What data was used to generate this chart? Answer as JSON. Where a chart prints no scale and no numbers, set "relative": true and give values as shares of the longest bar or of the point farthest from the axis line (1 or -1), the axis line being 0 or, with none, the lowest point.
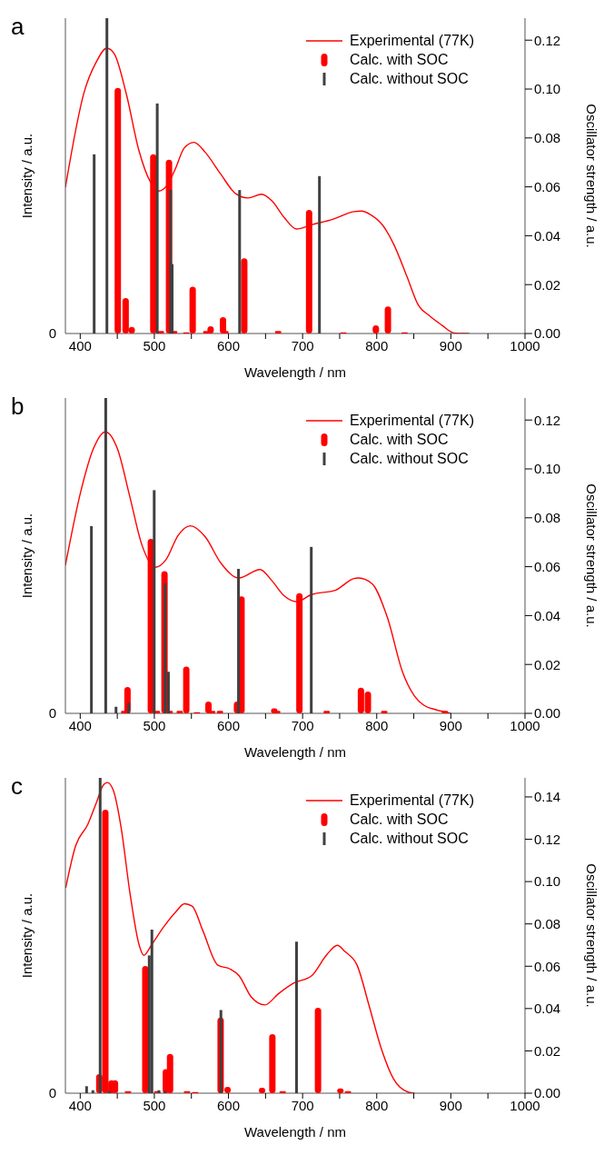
{
  "chart_data": [
    {
      "type": "line",
      "title": "a",
      "xlabel": "Wavelength / nm",
      "ylabel": "Intensity / a.u.",
      "y2label": "Oscillator strength / a.u.",
      "relative": true,
      "legend": "top right",
      "annotations": [
        "0"
      ],
      "xlim": [
        380,
        1000
      ],
      "xticks": [
        400,
        {
          "value": 450,
          "label": null
        },
        500,
        {
          "value": 550,
          "label": null
        },
        600,
        {
          "value": 650,
          "label": null
        },
        700,
        {
          "value": 750,
          "label": null
        },
        800,
        {
          "value": 850,
          "label": null
        },
        900,
        {
          "value": 950,
          "label": null
        },
        1000
      ],
      "y2lim": [
        0,
        0.129
      ],
      "y2ticks": [
        {
          "value": 0,
          "label": "0.00"
        },
        {
          "value": 0.02,
          "label": "0.02"
        },
        {
          "value": 0.04,
          "label": "0.04"
        },
        {
          "value": 0.06,
          "label": "0.06"
        },
        {
          "value": 0.08,
          "label": "0.08"
        },
        {
          "value": 0.1,
          "label": "0.10"
        },
        {
          "value": 0.12,
          "label": "0.12"
        }
      ],
      "series": [
        {
          "name": "Experimental (77K)",
          "color": "#ff0000",
          "x": [
            380,
            405.3,
            421.7,
            436,
            446.2,
            462.6,
            478.9,
            495.3,
            505.5,
            517.8,
            528,
            540.3,
            553.4,
            568.9,
            589.4,
            609.8,
            626.2,
            644.6,
            658.9,
            675.3,
            691.6,
            712.1,
            740.7,
            769.3,
            779.6,
            791.9,
            808.2,
            822.5,
            840.9,
            855.2,
            871.6,
            888,
            904.3,
            925
          ],
          "values": [
            0.512,
            0.846,
            0.952,
            1,
            0.979,
            0.835,
            0.644,
            0.528,
            0.499,
            0.522,
            0.575,
            0.65,
            0.67,
            0.634,
            0.559,
            0.49,
            0.475,
            0.488,
            0.464,
            0.406,
            0.366,
            0.381,
            0.4,
            0.427,
            0.429,
            0.416,
            0.379,
            0.315,
            0.199,
            0.104,
            0.061,
            0.029,
            0.002,
            0
          ]
        },
        {
          "name": "Calc. with SOC",
          "type": "bar",
          "axis": "y2",
          "color": "#ff0000",
          "x": [
            450.7,
            461.3,
            469.5,
            498.6,
            508.8,
            519.8,
            526.8,
            543.1,
            551.7,
            570,
            575.9,
            592.6,
            595.9,
            621.3,
            667,
            708.8,
            755,
            798.8,
            815.1,
            837.6
          ],
          "values": [
            0.1005,
            0.0145,
            0.0027,
            0.0733,
            0.001,
            0.0711,
            0.001,
            0.0005,
            0.0191,
            0.001,
            0.003,
            0.0067,
            0.001,
            0.0308,
            0.001,
            0.0506,
            0.0005,
            0.0033,
            0.0111,
            0.0005
          ]
        },
        {
          "name": "Calc. without SOC",
          "type": "bar",
          "axis": "y2",
          "color": "#404040",
          "x": [
            418.8,
            436,
            503.9,
            521.9,
            524,
            615,
            722.7
          ],
          "values": [
            0.0733,
            0.129,
            0.0941,
            0.0588,
            0.0284,
            0.0587,
            0.0644
          ]
        }
      ]
    },
    {
      "type": "line",
      "title": "b",
      "xlabel": "Wavelength / nm",
      "ylabel": "Intensity / a.u.",
      "y2label": "Oscillator strength / a.u.",
      "relative": true,
      "legend": "top right",
      "annotations": [
        "0"
      ],
      "xlim": [
        380,
        1000
      ],
      "xticks": [
        400,
        {
          "value": 450,
          "label": null
        },
        500,
        {
          "value": 550,
          "label": null
        },
        600,
        {
          "value": 650,
          "label": null
        },
        700,
        {
          "value": 750,
          "label": null
        },
        800,
        {
          "value": 850,
          "label": null
        },
        900,
        {
          "value": 950,
          "label": null
        },
        1000
      ],
      "y2lim": [
        0,
        0.129
      ],
      "y2ticks": [
        {
          "value": 0,
          "label": "0.00"
        },
        {
          "value": 0.02,
          "label": "0.02"
        },
        {
          "value": 0.04,
          "label": "0.04"
        },
        {
          "value": 0.06,
          "label": "0.06"
        },
        {
          "value": 0.08,
          "label": "0.08"
        },
        {
          "value": 0.1,
          "label": "0.10"
        },
        {
          "value": 0.12,
          "label": "0.12"
        }
      ],
      "series": [
        {
          "name": "Experimental (77K)",
          "color": "#ff0000",
          "x": [
            380,
            401.2,
            417.6,
            434,
            450.3,
            466.7,
            483,
            501.4,
            515.7,
            532.1,
            548.5,
            568.9,
            589.4,
            613.9,
            642.5,
            658.9,
            675.3,
            691.6,
            712.1,
            744.8,
            769.3,
            775.4,
            793.9,
            814.3,
            834.8,
            851.1,
            863.4,
            879.8,
            900.2
          ],
          "values": [
            0.526,
            0.793,
            0.939,
            1,
            0.939,
            0.772,
            0.6,
            0.519,
            0.546,
            0.632,
            0.666,
            0.626,
            0.535,
            0.481,
            0.511,
            0.47,
            0.417,
            0.397,
            0.422,
            0.438,
            0.479,
            0.481,
            0.46,
            0.341,
            0.147,
            0.061,
            0.029,
            0.013,
            0
          ]
        },
        {
          "name": "Calc. with SOC",
          "type": "bar",
          "axis": "y2",
          "color": "#ff0000",
          "x": [
            459.3,
            463.8,
            495.3,
            503.5,
            513.7,
            520.7,
            534.2,
            543.1,
            557.5,
            573,
            578,
            588.5,
            611.5,
            617.6,
            661.8,
            665.8,
            695.7,
            732.5,
            778.7,
            788.1,
            810.2,
            892
          ],
          "values": [
            0.001,
            0.0108,
            0.0714,
            0.001,
            0.0582,
            0.001,
            0.001,
            0.0191,
            0.0005,
            0.0048,
            0.001,
            0.001,
            0.0048,
            0.0479,
            0.002,
            0.001,
            0.0492,
            0.001,
            0.0105,
            0.0089,
            0.001,
            0.001
          ]
        },
        {
          "name": "Calc. without SOC",
          "type": "bar",
          "axis": "y2",
          "color": "#404040",
          "x": [
            415.1,
            434.4,
            448.3,
            465.4,
            499.8,
            514.5,
            519,
            613.5,
            711.7
          ],
          "values": [
            0.0766,
            0.129,
            0.0027,
            0.0043,
            0.0913,
            0.0532,
            0.017,
            0.0591,
            0.0681
          ]
        }
      ]
    },
    {
      "type": "line",
      "title": "c",
      "xlabel": "Wavelength / nm",
      "ylabel": "Intensity / a.u.",
      "y2label": "Oscillator strength / a.u.",
      "relative": true,
      "legend": "top right",
      "annotations": [
        "0"
      ],
      "xlim": [
        380,
        1000
      ],
      "xticks": [
        400,
        {
          "value": 450,
          "label": null
        },
        500,
        {
          "value": 550,
          "label": null
        },
        600,
        {
          "value": 650,
          "label": null
        },
        700,
        {
          "value": 750,
          "label": null
        },
        800,
        {
          "value": 850,
          "label": null
        },
        900,
        {
          "value": 950,
          "label": null
        },
        1000
      ],
      "y2lim": [
        0,
        0.149
      ],
      "y2ticks": [
        {
          "value": 0,
          "label": "0.00"
        },
        {
          "value": 0.02,
          "label": "0.02"
        },
        {
          "value": 0.04,
          "label": "0.04"
        },
        {
          "value": 0.06,
          "label": "0.06"
        },
        {
          "value": 0.08,
          "label": "0.08"
        },
        {
          "value": 0.1,
          "label": "0.10"
        },
        {
          "value": 0.12,
          "label": "0.12"
        },
        {
          "value": 0.14,
          "label": "0.14"
        }
      ],
      "series": [
        {
          "name": "Experimental (77K)",
          "color": "#ff0000",
          "x": [
            380.4,
            393.9,
            410.2,
            422.4,
            430.6,
            436.7,
            444.9,
            455.1,
            467.3,
            479.6,
            485.7,
            495.9,
            512.2,
            528.6,
            540.8,
            551,
            565.3,
            585.7,
            602,
            614.3,
            630.6,
            649,
            667.3,
            687.8,
            712.2,
            732.7,
            746.9,
            757.1,
            773.5,
            789.8,
            806.1,
            822.4,
            842.9,
            851
          ],
          "values": [
            0.661,
            0.797,
            0.865,
            0.939,
            0.99,
            1,
            0.973,
            0.856,
            0.641,
            0.476,
            0.444,
            0.476,
            0.534,
            0.583,
            0.61,
            0.602,
            0.524,
            0.412,
            0.4,
            0.378,
            0.31,
            0.284,
            0.32,
            0.354,
            0.378,
            0.446,
            0.476,
            0.456,
            0.412,
            0.281,
            0.144,
            0.047,
            0.003,
            0
          ]
        },
        {
          "name": "Calc. with SOC",
          "type": "bar",
          "axis": "y2",
          "color": "#ff0000",
          "x": [
            425.7,
            433.9,
            442,
            446.9,
            464.5,
            487.8,
            504,
            515.5,
            521.2,
            544.1,
            555.1,
            589.4,
            598.8,
            645.3,
            659.2,
            673.1,
            720.8,
            751,
            761.2
          ],
          "values": [
            0.009,
            0.134,
            0.0061,
            0.0061,
            0.001,
            0.0601,
            0.001,
            0.0114,
            0.0186,
            0.001,
            0.0005,
            0.0357,
            0.003,
            0.0026,
            0.0279,
            0.001,
            0.0404,
            0.0023,
            0.001
          ]
        },
        {
          "name": "Calc. without SOC",
          "type": "bar",
          "axis": "y2",
          "color": "#404040",
          "x": [
            408.6,
            417.1,
            426.9,
            438.8,
            493.1,
            496.7,
            506.1,
            514.3,
            589.8,
            691.8
          ],
          "values": [
            0.0033,
            0.0014,
            0.149,
            0.001,
            0.0651,
            0.0773,
            0.0014,
            0.001,
            0.0393,
            0.0716
          ]
        }
      ]
    }
  ]
}
